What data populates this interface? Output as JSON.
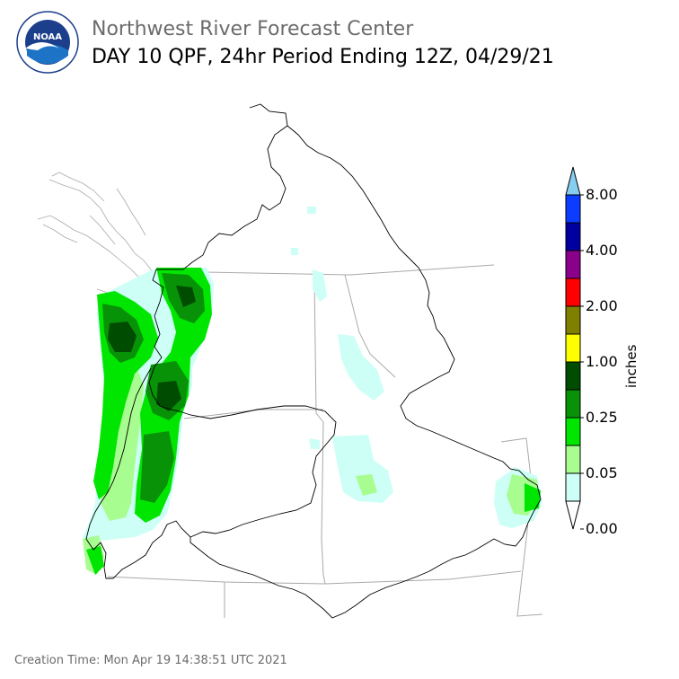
{
  "header": {
    "org": "Northwest River Forecast Center",
    "product": "DAY 10 QPF, 24hr Period Ending 12Z, 04/29/21"
  },
  "logo": {
    "center_text": "NOAA",
    "ring_text_top": "NATIONAL OCEANIC AND ATMOSPHERIC ADMINISTRATION",
    "ring_text_bottom": "U.S. DEPARTMENT OF COMMERCE"
  },
  "legend": {
    "unit": "inches",
    "labels": [
      "8.00",
      "4.00",
      "2.00",
      "1.00",
      "0.25",
      "0.05",
      "0.00"
    ],
    "colors": [
      "#86cdf0",
      "#0a3dff",
      "#0000a0",
      "#8b008b",
      "#ff0000",
      "#808000",
      "#ffff00",
      "#004c00",
      "#089208",
      "#00e600",
      "#a8fd90",
      "#cdfff6",
      "#ffffff"
    ]
  },
  "footer": {
    "creation_time": "Creation Time: Mon Apr 19 14:38:51 UTC 2021"
  }
}
